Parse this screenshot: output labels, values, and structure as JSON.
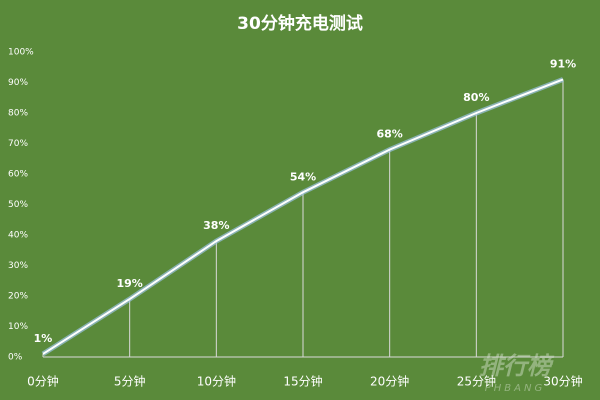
{
  "chart_data": {
    "type": "line",
    "title": "30分钟充电测试",
    "categories": [
      "0分钟",
      "5分钟",
      "10分钟",
      "15分钟",
      "20分钟",
      "25分钟",
      "30分钟"
    ],
    "values": [
      1,
      19,
      38,
      54,
      68,
      80,
      91
    ],
    "value_labels": [
      "1%",
      "19%",
      "38%",
      "54%",
      "68%",
      "80%",
      "91%"
    ],
    "color": "#ffffff",
    "ylim": [
      0,
      100
    ],
    "yticks": [
      {
        "value": 0,
        "label": "0%"
      },
      {
        "value": 10,
        "label": "10%"
      },
      {
        "value": 20,
        "label": "20%"
      },
      {
        "value": 30,
        "label": "30%"
      },
      {
        "value": 40,
        "label": "40%"
      },
      {
        "value": 50,
        "label": "50%"
      },
      {
        "value": 60,
        "label": "60%"
      },
      {
        "value": 70,
        "label": "70%"
      },
      {
        "value": 80,
        "label": "80%"
      },
      {
        "value": 90,
        "label": "90%"
      },
      {
        "value": 100,
        "label": "100%"
      }
    ],
    "drop_lines": true,
    "watermark": {
      "text": "排行榜",
      "subtext": "PHBANG"
    }
  }
}
